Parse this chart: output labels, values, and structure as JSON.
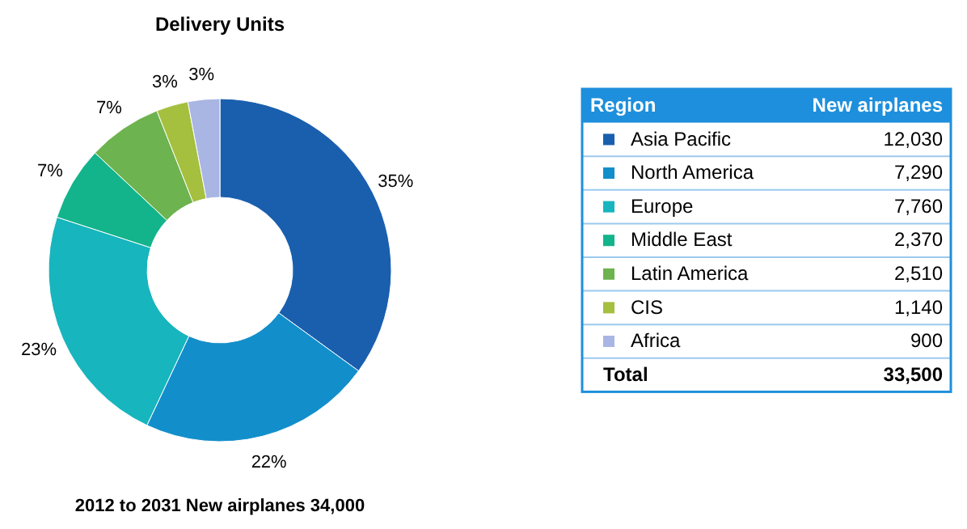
{
  "chart_data": [
    {
      "type": "donut",
      "title": "Delivery Units",
      "values": [
        35,
        22,
        23,
        7,
        7,
        3,
        3
      ],
      "value_labels": [
        "35%",
        "22%",
        "23%",
        "7%",
        "7%",
        "3%",
        "3%"
      ],
      "colors": [
        "#1a5fae",
        "#128fcb",
        "#17b5bd",
        "#13b48b",
        "#6db34f",
        "#a5bf3f",
        "#a9b5e3"
      ],
      "annotations": [
        "2012 to 2031 New airplanes 34,000"
      ]
    },
    {
      "type": "other",
      "xlabel": "Region",
      "ylabel": "New airplanes",
      "categories": [
        "Asia Pacific",
        "North America",
        "Europe",
        "Middle East",
        "Latin America",
        "CIS",
        "Africa"
      ],
      "value_labels": [
        "12,030",
        "7,290",
        "7,760",
        "2,370",
        "2,510",
        "1,140",
        "900"
      ],
      "colors": [
        "#1a5fae",
        "#128fcb",
        "#17b5bd",
        "#13b48b",
        "#6db34f",
        "#a5bf3f",
        "#a9b5e3"
      ],
      "annotations": [
        "Total"
      ],
      "totals": [
        "33,500"
      ]
    }
  ]
}
